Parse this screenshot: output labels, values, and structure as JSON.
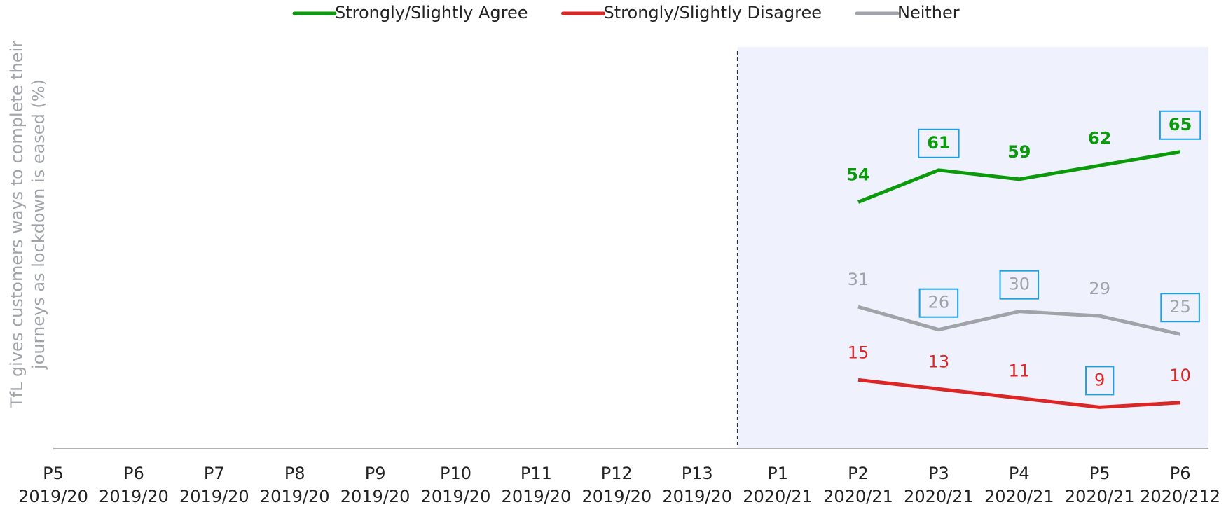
{
  "chart_data": {
    "type": "line",
    "y_label": [
      "TfL gives customers ways to complete their",
      "journeys as lockdown is eased (%)"
    ],
    "categories": [
      [
        "P5",
        "2019/20"
      ],
      [
        "P6",
        "2019/20"
      ],
      [
        "P7",
        "2019/20"
      ],
      [
        "P8",
        "2019/20"
      ],
      [
        "P9",
        "2019/20"
      ],
      [
        "P10",
        "2019/20"
      ],
      [
        "P11",
        "2019/20"
      ],
      [
        "P12",
        "2019/20"
      ],
      [
        "P13",
        "2019/20"
      ],
      [
        "P1",
        "2020/21"
      ],
      [
        "P2",
        "2020/21"
      ],
      [
        "P3",
        "2020/21"
      ],
      [
        "P4",
        "2020/21"
      ],
      [
        "P5",
        "2020/21"
      ],
      [
        "P6",
        "2020/212"
      ]
    ],
    "series": [
      {
        "name": "Strongly/Slightly Agree",
        "color": "#0a9a0a",
        "values": [
          null,
          null,
          null,
          null,
          null,
          null,
          null,
          null,
          null,
          null,
          54,
          61,
          59,
          62,
          65
        ],
        "boxed": [
          false,
          false,
          false,
          false,
          false,
          false,
          false,
          false,
          false,
          false,
          false,
          true,
          false,
          false,
          true
        ]
      },
      {
        "name": "Strongly/Slightly Disagree",
        "color": "#dc2626",
        "values": [
          null,
          null,
          null,
          null,
          null,
          null,
          null,
          null,
          null,
          null,
          15,
          13,
          11,
          9,
          10
        ],
        "boxed": [
          false,
          false,
          false,
          false,
          false,
          false,
          false,
          false,
          false,
          false,
          false,
          false,
          false,
          true,
          false
        ]
      },
      {
        "name": "Neither",
        "color": "#a0a3a8",
        "values": [
          null,
          null,
          null,
          null,
          null,
          null,
          null,
          null,
          null,
          null,
          31,
          26,
          30,
          29,
          25
        ],
        "boxed": [
          false,
          false,
          false,
          false,
          false,
          false,
          false,
          false,
          false,
          false,
          false,
          true,
          true,
          false,
          true
        ]
      }
    ],
    "ylim": [
      0,
      88
    ],
    "legend": "top",
    "box_color": "#1ea0e0",
    "shade_color": "#eff1fd"
  }
}
